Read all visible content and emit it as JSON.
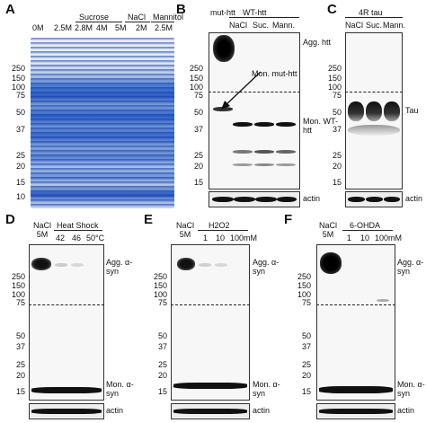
{
  "panels": [
    {
      "id": "A",
      "letter": "A"
    },
    {
      "id": "B",
      "letter": "B"
    },
    {
      "id": "C",
      "letter": "C"
    },
    {
      "id": "D",
      "letter": "D"
    },
    {
      "id": "E",
      "letter": "E"
    },
    {
      "id": "F",
      "letter": "F"
    }
  ],
  "panelA": {
    "groups": [
      "Sucrose",
      "NaCl",
      "Mannitol"
    ],
    "lanes": [
      "0M",
      "2.5M",
      "2.8M",
      "4M",
      "5M",
      "2M",
      "2.5M"
    ],
    "markers": [
      "250",
      "150",
      "100",
      "75",
      "50",
      "37",
      "25",
      "20",
      "15",
      "10"
    ]
  },
  "panelB": {
    "group": "WT-htt",
    "first_lane": "mut-htt",
    "lanes": [
      "NaCl",
      "Suc.",
      "Mann."
    ],
    "markers": [
      "250",
      "150",
      "100",
      "75",
      "50",
      "37",
      "25",
      "20",
      "15"
    ],
    "labels": {
      "agg": "Agg. htt",
      "mon_mut": "Mon. mut-htt",
      "mon_wt": "Mon. WT-htt",
      "actin": "actin"
    }
  },
  "panelC": {
    "group": "4R tau",
    "lanes": [
      "NaCl",
      "Suc.",
      "Mann."
    ],
    "markers": [
      "250",
      "150",
      "100",
      "75",
      "50",
      "37",
      "25",
      "20",
      "15"
    ],
    "labels": {
      "tau": "Tau",
      "actin": "actin"
    }
  },
  "panelD": {
    "first_lane": "NaCl 5M",
    "group": "Heat Shock",
    "lanes": [
      "42",
      "46",
      "50°C"
    ],
    "markers": [
      "250",
      "150",
      "100",
      "75",
      "50",
      "37",
      "25",
      "20",
      "15"
    ],
    "labels": {
      "agg": "Agg. α-syn",
      "mon": "Mon. α-syn",
      "actin": "actin"
    }
  },
  "panelE": {
    "first_lane": "NaCl 5M",
    "group": "H2O2",
    "lanes": [
      "1",
      "10",
      "100mM"
    ],
    "markers": [
      "250",
      "150",
      "100",
      "75",
      "50",
      "37",
      "25",
      "20",
      "15"
    ],
    "labels": {
      "agg": "Agg. α-syn",
      "mon": "Mon. α-syn",
      "actin": "actin"
    }
  },
  "panelF": {
    "first_lane": "NaCl 5M",
    "group": "6-OHDA",
    "lanes": [
      "1",
      "10",
      "100mM"
    ],
    "markers": [
      "250",
      "150",
      "100",
      "75",
      "50",
      "37",
      "25",
      "20",
      "15"
    ],
    "labels": {
      "agg": "Agg. α-syn",
      "mon": "Mon. α-syn",
      "actin": "actin"
    }
  }
}
